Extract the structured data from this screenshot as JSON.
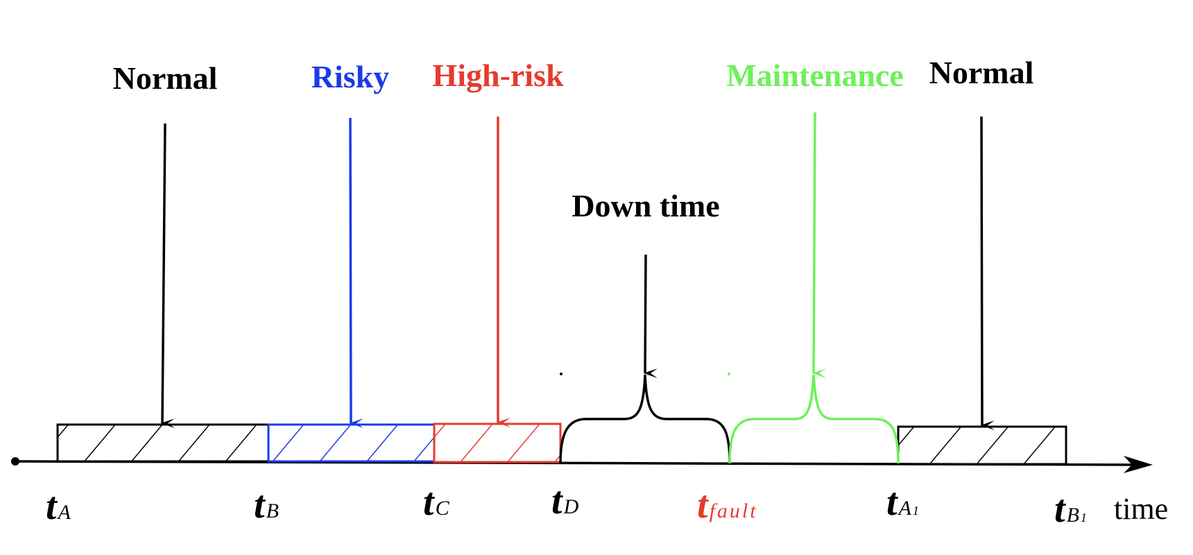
{
  "colors": {
    "normal": "#000000",
    "risky": "#1a3be8",
    "high_risk": "#e63b2e",
    "maintenance": "#6ef05a",
    "axis": "#000000"
  },
  "states": {
    "normal_1": "Normal",
    "risky": "Risky",
    "high_risk": "High-risk",
    "down_time": "Down time",
    "maintenance": "Maintenance",
    "normal_2": "Normal"
  },
  "time_points": {
    "tA": {
      "main": "t",
      "sub": "A"
    },
    "tB": {
      "main": "t",
      "sub": "B"
    },
    "tC": {
      "main": "t",
      "sub": "C"
    },
    "tD": {
      "main": "t",
      "sub": "D"
    },
    "tfault": {
      "main": "t",
      "sub": "fault"
    },
    "tA1": {
      "main": "t",
      "sub": "A",
      "subsub": "1"
    },
    "tB1": {
      "main": "t",
      "sub": "B",
      "subsub": "1"
    }
  },
  "axis": {
    "label": "time"
  }
}
